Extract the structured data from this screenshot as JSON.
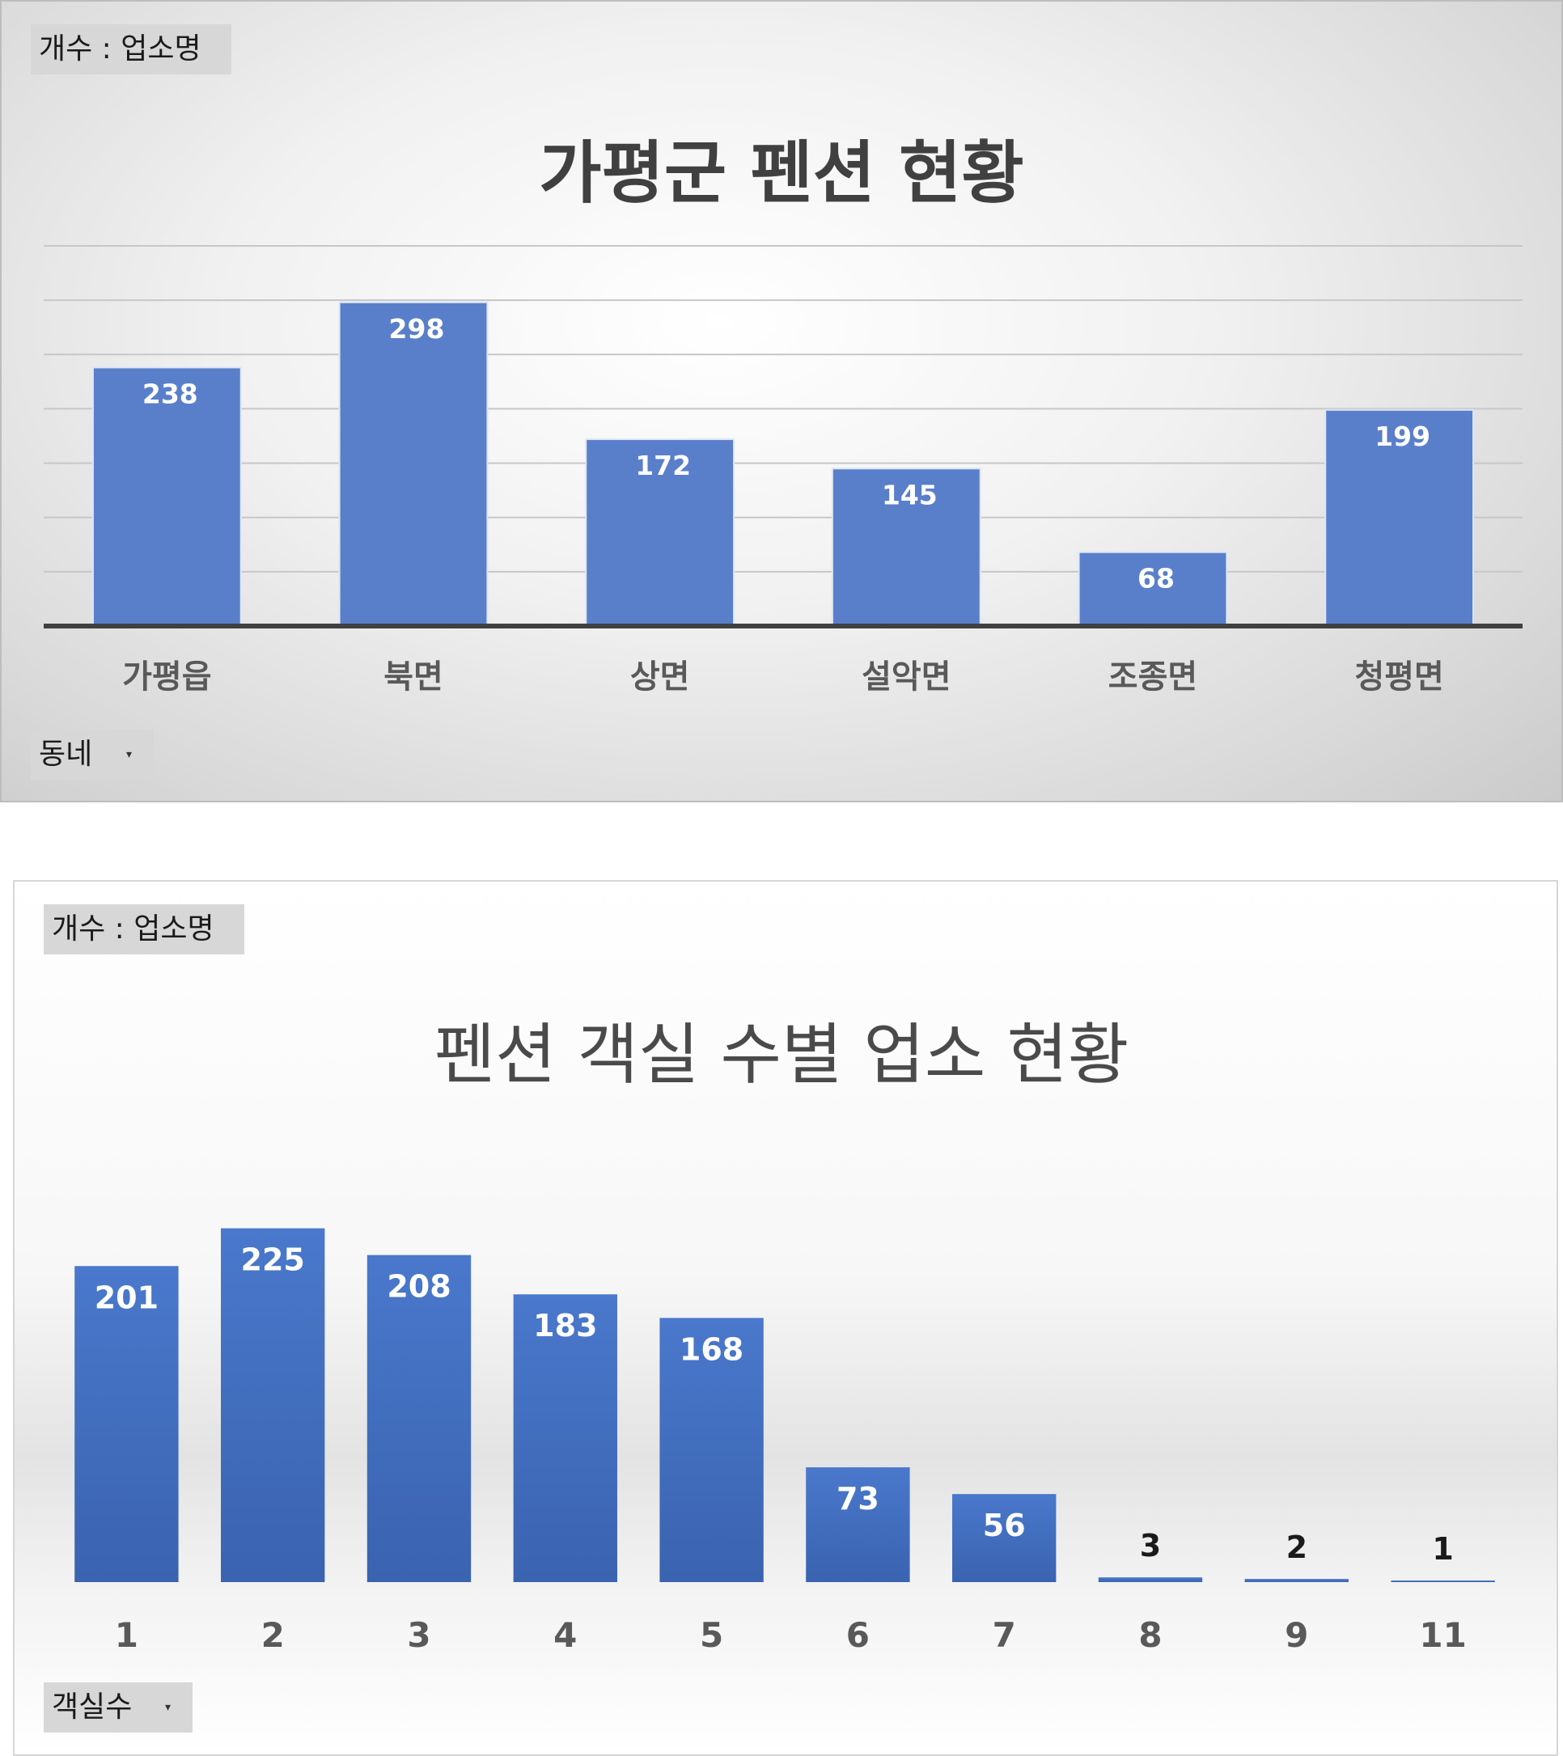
{
  "chart_data": [
    {
      "type": "bar",
      "title": "가평군 펜션 현황",
      "value_field": "개수 : 업소명",
      "axis_field": "동네",
      "categories": [
        "가평읍",
        "북면",
        "상면",
        "설악면",
        "조종면",
        "청평면"
      ],
      "values": [
        238,
        298,
        172,
        145,
        68,
        199
      ],
      "ylim": [
        0,
        350
      ],
      "grid": true,
      "legend": "none",
      "color": "#5a7fca"
    },
    {
      "type": "bar",
      "title": "펜션 객실 수별 업소 현황",
      "value_field": "개수 : 업소명",
      "axis_field": "객실수",
      "categories": [
        "1",
        "2",
        "3",
        "4",
        "5",
        "6",
        "7",
        "8",
        "9",
        "11"
      ],
      "values": [
        201,
        225,
        208,
        183,
        168,
        73,
        56,
        3,
        2,
        1
      ],
      "ylim": [
        0,
        250
      ],
      "grid": false,
      "legend": "none",
      "color": "#4472c4"
    }
  ]
}
